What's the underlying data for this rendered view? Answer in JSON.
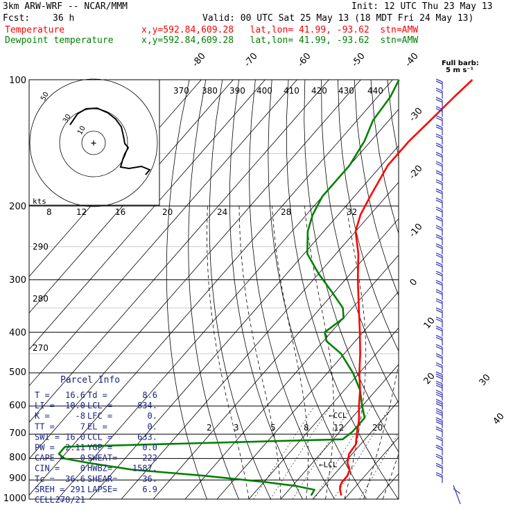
{
  "header": {
    "model": "3km ARW-WRF -- NCAR/MMM",
    "init": "Init: 12 UTC Thu 23 May 13",
    "fcst_label": "Fcst:",
    "fcst_value": "36 h",
    "valid": "Valid: 00 UTC Sat 25 May 13 (18 MDT Fri 24 May 13)",
    "temp_label": "Temperature",
    "temp_info": "x,y=592.84,609.28   lat,lon= 41.99, -93.62  stn=AMW",
    "dew_label": "Dewpoint temperature",
    "dew_info": "x,y=592.84,609.28   lat,lon= 41.99, -93.62  stn=AMW",
    "colors": {
      "temperature": "#ff0000",
      "dewpoint": "#008000"
    }
  },
  "barb_legend": {
    "line1": "Full barb:",
    "line2": "5 m s⁻¹"
  },
  "hodograph": {
    "units": "kts",
    "ring_labels": [
      "10",
      "30",
      "50"
    ],
    "center_symbol": "+"
  },
  "parcel_info": {
    "title": "Parcel Info",
    "rows": [
      [
        "T  =",
        "16.6",
        "Td =",
        "8.6"
      ],
      [
        "LI =",
        "10.0",
        "LCL =",
        "834."
      ],
      [
        "K  =",
        "-8",
        "LFC =",
        "0."
      ],
      [
        "TT =",
        "7",
        "EL  =",
        "0."
      ],
      [
        "SWI =",
        "16.0",
        "CCL =",
        "633."
      ],
      [
        "PW =",
        "2.11",
        "YGP =",
        "0.0"
      ],
      [
        "CAPE =",
        "0",
        "SWEAT=",
        "222"
      ],
      [
        "CIN =",
        "0",
        "HWBZ=",
        "1587."
      ],
      [
        "Tc =",
        "36.6",
        "SHEAR=",
        "36."
      ],
      [
        "SREH =",
        "291",
        "LAPSE=",
        "6.9"
      ],
      [
        "CELL =",
        "278/21",
        "",
        ""
      ]
    ]
  },
  "chart_data": {
    "type": "line",
    "title": "Skew-T log-p sounding",
    "y_axis": {
      "label": "pressure (hPa)",
      "scale": "log",
      "range": [
        1000,
        100
      ],
      "ticks": [
        "100",
        "200",
        "300",
        "400",
        "500",
        "600",
        "700",
        "800",
        "900",
        "1000"
      ]
    },
    "isotherm_labels": [
      "-80",
      "-70",
      "-60",
      "-50",
      "-40",
      "-30",
      "-20",
      "-10",
      "0",
      "10",
      "20",
      "30",
      "40"
    ],
    "theta_labels": [
      "370",
      "380",
      "390",
      "400",
      "410",
      "420",
      "430",
      "440"
    ],
    "mixing_ratio_labels_upper": [
      "8",
      "12",
      "16",
      "20",
      "24",
      "28",
      "32"
    ],
    "mixing_ratio_labels_lower": [
      "2",
      "3",
      "5",
      "8",
      "12",
      "20"
    ],
    "theta_e_labels": [
      "290",
      "280",
      "270"
    ],
    "annotations": [
      "CCL",
      "LCL"
    ],
    "series": [
      {
        "name": "Temperature",
        "pressure": [
          980,
          950,
          930,
          910,
          880,
          850,
          820,
          780,
          740,
          700,
          650,
          600,
          550,
          500,
          450,
          400,
          350,
          300,
          260,
          230,
          210,
          190,
          160,
          140,
          125,
          110,
          100
        ],
        "temperature": [
          18,
          16,
          15,
          14.5,
          14.5,
          13.5,
          11,
          9,
          8.5,
          6,
          3,
          -1,
          -5,
          -10,
          -15,
          -21,
          -28,
          -36,
          -43,
          -50,
          -53,
          -55,
          -58,
          -58,
          -57,
          -56,
          -55
        ]
      },
      {
        "name": "Dewpoint temperature",
        "pressure": [
          980,
          950,
          930,
          910,
          880,
          850,
          820,
          800,
          780,
          750,
          720,
          690,
          640,
          600,
          550,
          500,
          450,
          420,
          400,
          370,
          350,
          320,
          290,
          260,
          230,
          210,
          190,
          160,
          140,
          125,
          110,
          100
        ],
        "dewpoint": [
          8.5,
          8,
          1,
          -10,
          -30,
          -55,
          -70,
          -79,
          -82,
          -82,
          3,
          4,
          4,
          0,
          -5,
          -12,
          -21,
          -29,
          -32,
          -30,
          -33,
          -41,
          -50,
          -59,
          -65,
          -68,
          -70,
          -70,
          -72,
          -75,
          -76,
          -78
        ]
      }
    ]
  }
}
